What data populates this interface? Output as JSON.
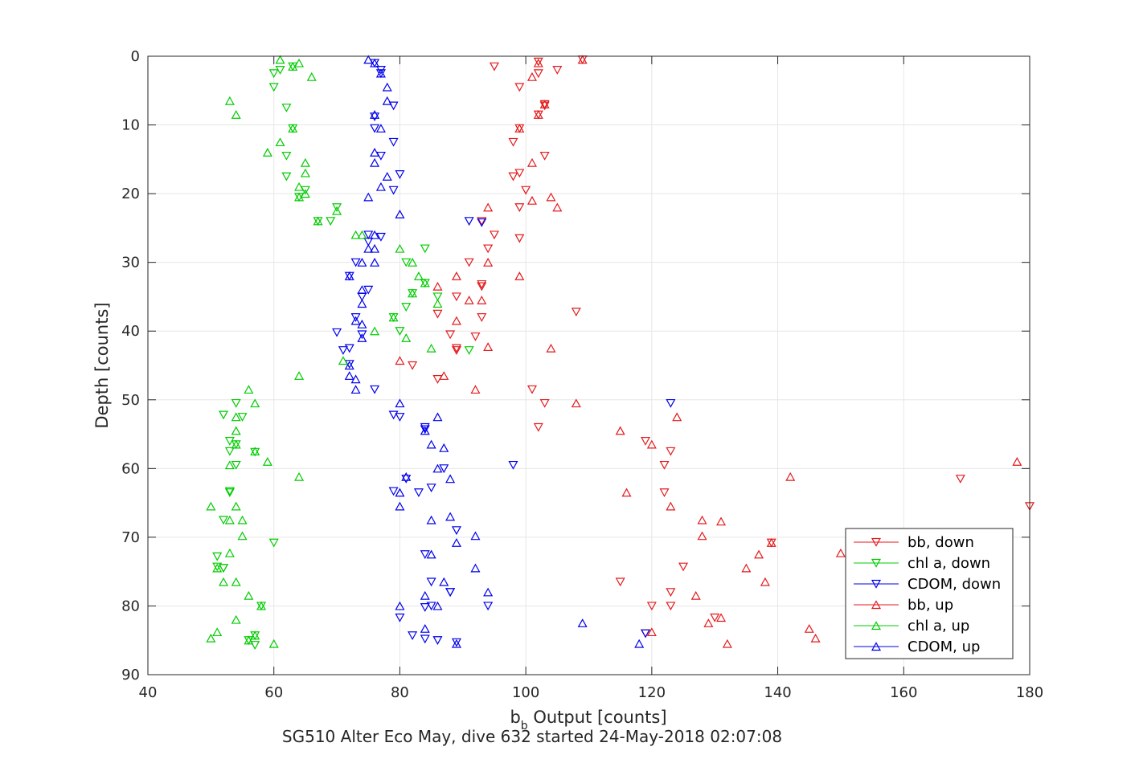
{
  "chart_data": {
    "type": "scatter",
    "title": "SG510 Alter Eco May, dive 632 started 24-May-2018 02:07:08",
    "xlabel_main": "b",
    "xlabel_sub": "b",
    "xlabel_rest": " Output [counts]",
    "ylabel": "Depth [counts]",
    "xlim": [
      40,
      180
    ],
    "ylim": [
      0,
      90
    ],
    "y_reversed": true,
    "grid": true,
    "legend_position": "lower-right",
    "x_ticks": [
      "40",
      "60",
      "80",
      "100",
      "120",
      "140",
      "160",
      "180"
    ],
    "y_ticks": [
      "0",
      "10",
      "20",
      "30",
      "40",
      "50",
      "60",
      "70",
      "80",
      "90"
    ],
    "series": [
      {
        "name": "bb, down",
        "color": "#e41a1c",
        "marker": "down",
        "x": [
          95,
          102,
          109,
          102,
          105,
          99,
          103,
          103,
          102,
          99,
          98,
          103,
          98,
          99,
          99,
          100,
          99,
          93,
          95,
          94,
          93,
          91,
          93,
          89,
          89,
          93,
          108,
          86,
          88,
          92,
          89,
          82,
          86,
          101,
          103,
          102,
          119,
          123,
          122,
          169,
          122,
          180,
          139,
          125,
          115,
          123,
          120,
          123,
          119,
          130
        ],
        "y": [
          1.5,
          0.8,
          0.5,
          2.5,
          2.0,
          4.5,
          7.0,
          7.2,
          8.5,
          10.5,
          12.5,
          14.5,
          17.5,
          17.0,
          22.0,
          19.5,
          26.5,
          24.0,
          26.0,
          28.0,
          33.5,
          30.0,
          38.0,
          35.0,
          42.8,
          33.2,
          37.2,
          37.5,
          40.5,
          40.8,
          42.5,
          45.0,
          47.0,
          48.5,
          50.5,
          54.0,
          56.0,
          57.5,
          59.5,
          61.5,
          63.5,
          65.5,
          70.8,
          74.3,
          76.5,
          78.0,
          80.0,
          80.0,
          84.0,
          81.7
        ]
      },
      {
        "name": "chl a, down",
        "color": "#00cc00",
        "marker": "down",
        "x": [
          61,
          63,
          60,
          60,
          62,
          63,
          62,
          62,
          64,
          65,
          70,
          69,
          67,
          84,
          81,
          86,
          84,
          82,
          81,
          79,
          80,
          91,
          54,
          55,
          52,
          53,
          54,
          53,
          53,
          54,
          57,
          53,
          52,
          60,
          51,
          52,
          51,
          52,
          57,
          57,
          56,
          58
        ],
        "y": [
          2.0,
          1.5,
          2.5,
          4.5,
          7.5,
          10.5,
          14.5,
          17.5,
          20.5,
          19.5,
          22.0,
          24.0,
          24.0,
          28.0,
          30.0,
          35.0,
          33.0,
          34.5,
          36.5,
          38.0,
          40.0,
          42.8,
          50.5,
          52.5,
          52.2,
          56.0,
          56.5,
          57.5,
          63.5,
          59.5,
          57.6,
          63.3,
          67.5,
          70.8,
          72.8,
          74.5,
          74.3,
          74.5,
          84.3,
          85.7,
          85.0,
          80.0
        ]
      },
      {
        "name": "CDOM, down",
        "color": "#0000ee",
        "marker": "down",
        "x": [
          76,
          77,
          77,
          79,
          76,
          76,
          79,
          77,
          80,
          79,
          91,
          93,
          75,
          77,
          75,
          73,
          75,
          74,
          72,
          70,
          73,
          72,
          74,
          71,
          72,
          76,
          80,
          79,
          84,
          84,
          98,
          87,
          81,
          85,
          79,
          83,
          89,
          84,
          85,
          88,
          94,
          84,
          80,
          82,
          86,
          89,
          84,
          119,
          85,
          88,
          123
        ],
        "y": [
          1.0,
          2.5,
          2.0,
          7.2,
          10.5,
          8.8,
          12.5,
          14.5,
          17.2,
          19.5,
          24.0,
          24.2,
          26.0,
          26.3,
          27.0,
          30.0,
          34.0,
          35.0,
          32.0,
          40.2,
          38.0,
          42.5,
          40.5,
          42.8,
          44.8,
          48.5,
          52.5,
          52.2,
          54.0,
          54.3,
          59.5,
          60.0,
          61.5,
          62.8,
          63.3,
          63.5,
          69.0,
          72.5,
          76.5,
          78.0,
          80.0,
          80.2,
          81.7,
          84.3,
          85.0,
          85.3,
          84.8,
          84.0,
          80.0,
          78.0,
          50.5
        ]
      }
    ],
    "series_up": [
      {
        "name": "bb, up",
        "color": "#e41a1c",
        "marker": "up",
        "x": [
          109,
          102,
          101,
          103,
          102,
          99,
          101,
          104,
          105,
          101,
          94,
          94,
          99,
          93,
          104,
          94,
          89,
          86,
          91,
          89,
          87,
          80,
          92,
          108,
          124,
          115,
          120,
          178,
          142,
          116,
          123,
          128,
          131,
          128,
          139,
          137,
          150,
          135,
          138,
          127,
          129,
          120,
          131,
          146,
          145,
          132
        ],
        "y": [
          0.5,
          1.0,
          3.0,
          7.0,
          8.5,
          10.5,
          15.5,
          20.5,
          22.0,
          21.0,
          22.0,
          30.0,
          32.0,
          35.5,
          42.5,
          42.3,
          32.0,
          33.5,
          35.5,
          38.5,
          46.5,
          44.3,
          48.5,
          50.5,
          52.5,
          54.5,
          56.5,
          59.0,
          61.2,
          63.5,
          65.5,
          67.5,
          67.7,
          69.8,
          70.8,
          72.5,
          72.3,
          74.5,
          76.5,
          78.5,
          82.5,
          83.8,
          81.7,
          84.7,
          83.3,
          85.5
        ]
      },
      {
        "name": "chl a, up",
        "color": "#00cc00",
        "marker": "up",
        "x": [
          61,
          64,
          63,
          66,
          53,
          54,
          63,
          61,
          59,
          65,
          65,
          64,
          65,
          64,
          70,
          67,
          73,
          74,
          80,
          82,
          83,
          84,
          82,
          86,
          79,
          81,
          76,
          85,
          71,
          64,
          56,
          57,
          54,
          54,
          54,
          53,
          57,
          59,
          64,
          50,
          54,
          53,
          55,
          55,
          53,
          54,
          51,
          52,
          56,
          58,
          54,
          51,
          56,
          60,
          57,
          50
        ],
        "y": [
          0.5,
          1.0,
          1.5,
          3.0,
          6.5,
          8.5,
          10.5,
          12.5,
          14.0,
          15.5,
          17.0,
          19.0,
          20.0,
          20.5,
          22.5,
          24.0,
          26.0,
          26.0,
          28.0,
          30.0,
          32.0,
          33.0,
          34.5,
          36.0,
          38.0,
          41.0,
          40.0,
          42.5,
          44.3,
          46.5,
          48.5,
          50.5,
          52.5,
          54.5,
          56.5,
          59.5,
          57.5,
          59.0,
          61.2,
          65.5,
          65.5,
          67.5,
          67.5,
          69.8,
          72.3,
          76.5,
          74.5,
          76.5,
          78.5,
          80.0,
          82.0,
          83.8,
          85.0,
          85.5,
          84.3,
          84.7
        ]
      },
      {
        "name": "CDOM, up",
        "color": "#0000ee",
        "marker": "up",
        "x": [
          75,
          76,
          77,
          78,
          78,
          76,
          77,
          76,
          76,
          78,
          77,
          75,
          80,
          76,
          75,
          76,
          74,
          76,
          74,
          72,
          74,
          73,
          74,
          74,
          72,
          73,
          72,
          73,
          80,
          86,
          84,
          85,
          87,
          88,
          86,
          80,
          81,
          80,
          85,
          88,
          92,
          89,
          92,
          85,
          87,
          94,
          84,
          80,
          86,
          84,
          89,
          109,
          118
        ],
        "y": [
          0.5,
          1.0,
          2.5,
          4.5,
          6.5,
          8.5,
          10.5,
          14.0,
          15.5,
          17.5,
          19.0,
          20.5,
          23.0,
          26.0,
          28.0,
          28.0,
          30.0,
          30.0,
          34.0,
          32.0,
          36.0,
          38.5,
          39.0,
          41.0,
          46.5,
          47.0,
          45.0,
          48.5,
          50.5,
          52.5,
          54.5,
          56.5,
          57.0,
          61.5,
          60.0,
          63.5,
          61.2,
          65.5,
          67.5,
          67.0,
          69.8,
          70.8,
          74.5,
          72.5,
          76.5,
          78.0,
          78.5,
          80.0,
          80.0,
          83.3,
          85.5,
          82.5,
          85.5
        ]
      }
    ]
  },
  "legend": {
    "entries": [
      "bb, down",
      "chl a, down",
      "CDOM, down",
      "bb, up",
      "chl a, up",
      "CDOM, up"
    ]
  }
}
